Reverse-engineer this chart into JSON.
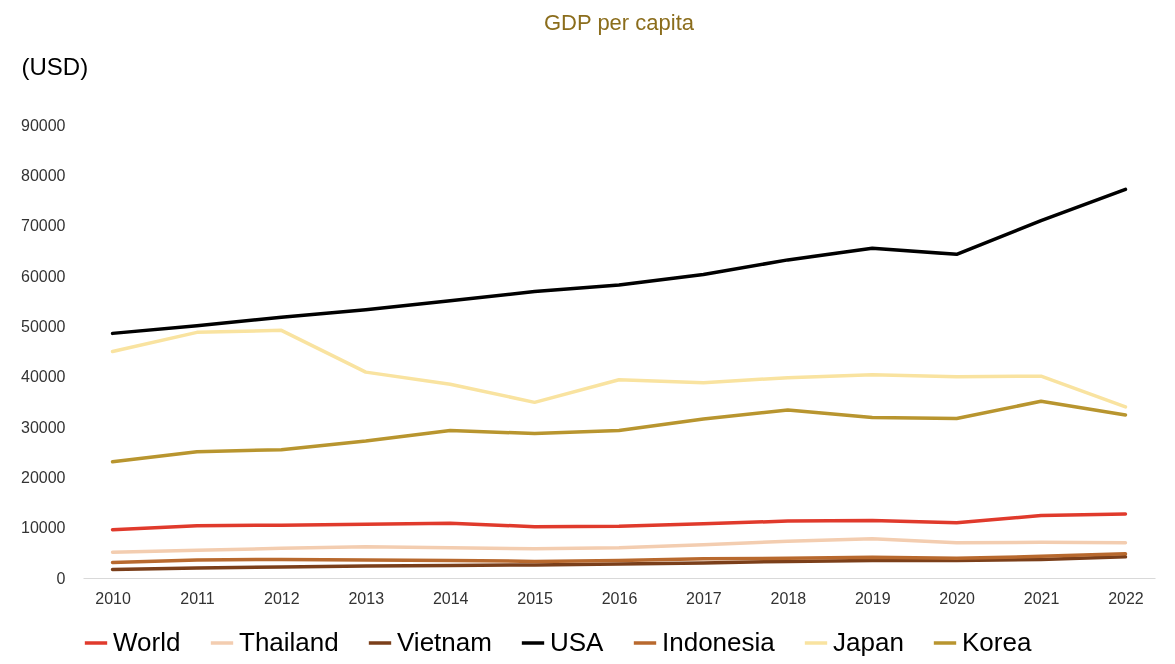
{
  "chart_data": {
    "type": "line",
    "title": "GDP per capita",
    "ylabel": "(USD)",
    "categories": [
      "2010",
      "2011",
      "2012",
      "2013",
      "2014",
      "2015",
      "2016",
      "2017",
      "2018",
      "2019",
      "2020",
      "2021",
      "2022"
    ],
    "series": [
      {
        "name": "World",
        "color": "#e03a2c",
        "values": [
          9600,
          10400,
          10500,
          10700,
          10900,
          10200,
          10300,
          10800,
          11300,
          11400,
          11000,
          12400,
          12700
        ]
      },
      {
        "name": "Thailand",
        "color": "#f3cdb0",
        "values": [
          5100,
          5500,
          5900,
          6200,
          6000,
          5800,
          6000,
          6600,
          7300,
          7800,
          7000,
          7100,
          7000
        ]
      },
      {
        "name": "Vietnam",
        "color": "#7b3f1a",
        "values": [
          1700,
          2000,
          2200,
          2400,
          2500,
          2600,
          2800,
          3000,
          3300,
          3500,
          3500,
          3700,
          4200
        ]
      },
      {
        "name": "USA",
        "color": "#000000",
        "values": [
          48600,
          50100,
          51800,
          53300,
          55100,
          56900,
          58200,
          60300,
          63200,
          65500,
          64300,
          71000,
          77200
        ]
      },
      {
        "name": "Indonesia",
        "color": "#b8692e",
        "values": [
          3100,
          3600,
          3700,
          3600,
          3500,
          3300,
          3500,
          3800,
          3900,
          4100,
          3900,
          4300,
          4800
        ]
      },
      {
        "name": "Japan",
        "color": "#f9e3a0",
        "values": [
          45000,
          48800,
          49200,
          40900,
          38500,
          34900,
          39400,
          38800,
          39800,
          40400,
          40000,
          40100,
          34000
        ]
      },
      {
        "name": "Korea",
        "color": "#b8952f",
        "values": [
          23100,
          25100,
          25500,
          27200,
          29300,
          28700,
          29300,
          31600,
          33400,
          31900,
          31700,
          35100,
          32400
        ]
      }
    ],
    "ylim": [
      0,
      90000
    ],
    "yticks": [
      0,
      10000,
      20000,
      30000,
      40000,
      50000,
      60000,
      70000,
      80000,
      90000
    ],
    "grid": false,
    "legend": "bottom",
    "marker": "none",
    "line_style": "solid"
  }
}
